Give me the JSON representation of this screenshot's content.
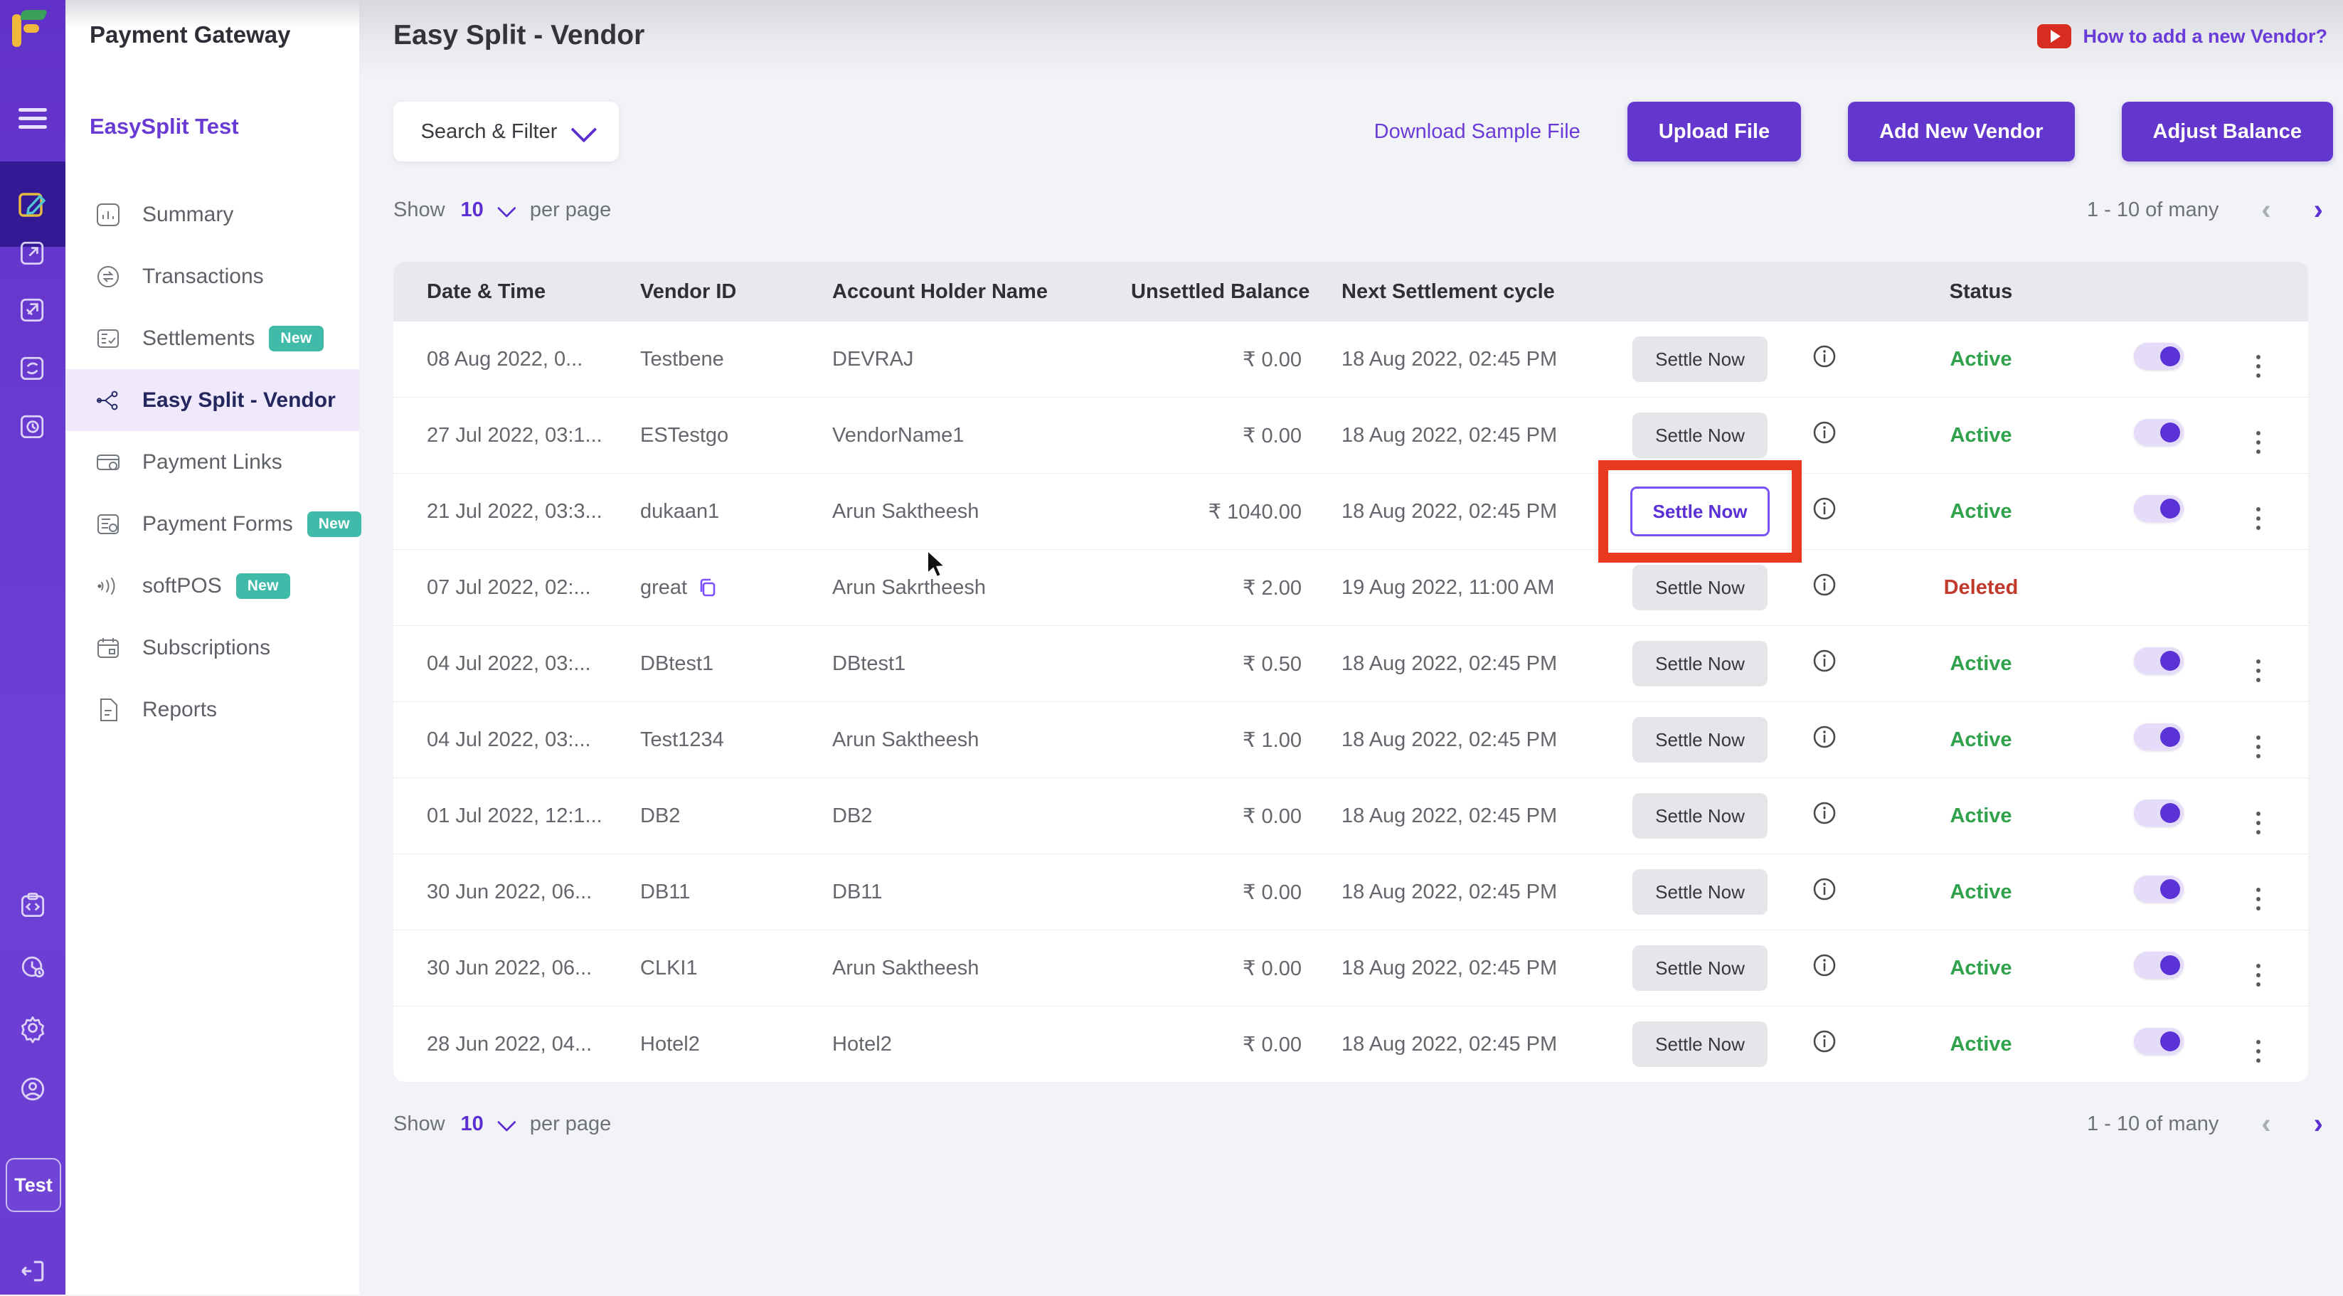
{
  "sidebar": {
    "product_title": "Payment Gateway",
    "account_name": "EasySplit Test",
    "test_mode_label": "Test",
    "menu": [
      {
        "label": "Summary",
        "icon": "summary",
        "badge": "",
        "active": false
      },
      {
        "label": "Transactions",
        "icon": "transactions",
        "badge": "",
        "active": false
      },
      {
        "label": "Settlements",
        "icon": "settlements",
        "badge": "New",
        "active": false
      },
      {
        "label": "Easy Split - Vendor",
        "icon": "easysplit",
        "badge": "",
        "active": true
      },
      {
        "label": "Payment Links",
        "icon": "paymentlinks",
        "badge": "",
        "active": false
      },
      {
        "label": "Payment Forms",
        "icon": "paymentforms",
        "badge": "New",
        "active": false
      },
      {
        "label": "softPOS",
        "icon": "softpos",
        "badge": "New",
        "active": false
      },
      {
        "label": "Subscriptions",
        "icon": "subscriptions",
        "badge": "",
        "active": false
      },
      {
        "label": "Reports",
        "icon": "reports",
        "badge": "",
        "active": false
      }
    ]
  },
  "header": {
    "page_title": "Easy Split - Vendor",
    "help_link": "How to add a new Vendor?"
  },
  "toolbar": {
    "search_filter_label": "Search & Filter",
    "download_sample_label": "Download Sample File",
    "upload_label": "Upload File",
    "add_vendor_label": "Add New Vendor",
    "adjust_balance_label": "Adjust Balance"
  },
  "pagination": {
    "show_label": "Show",
    "page_size": "10",
    "per_page_label": "per page",
    "range_label": "1 - 10 of many",
    "prev_icon": "‹",
    "next_icon": "›"
  },
  "table": {
    "columns": [
      "Date & Time",
      "Vendor ID",
      "Account Holder Name",
      "Unsettled Balance",
      "Next Settlement cycle",
      "Status"
    ],
    "settle_button_label": "Settle Now",
    "rows": [
      {
        "date": "08 Aug 2022, 0...",
        "vendor_id": "Testbene",
        "copy": false,
        "holder": "DEVRAJ",
        "balance": "₹ 0.00",
        "cycle": "18 Aug 2022, 02:45 PM",
        "status": "Active",
        "toggle": true,
        "highlight": false
      },
      {
        "date": "27 Jul 2022, 03:1...",
        "vendor_id": "ESTestgo",
        "copy": false,
        "holder": "VendorName1",
        "balance": "₹ 0.00",
        "cycle": "18 Aug 2022, 02:45 PM",
        "status": "Active",
        "toggle": true,
        "highlight": false
      },
      {
        "date": "21 Jul 2022, 03:3...",
        "vendor_id": "dukaan1",
        "copy": false,
        "holder": "Arun Saktheesh",
        "balance": "₹ 1040.00",
        "cycle": "18 Aug 2022, 02:45 PM",
        "status": "Active",
        "toggle": true,
        "highlight": true
      },
      {
        "date": "07 Jul 2022, 02:...",
        "vendor_id": "great",
        "copy": true,
        "holder": "Arun Sakrtheesh",
        "balance": "₹ 2.00",
        "cycle": "19 Aug 2022, 11:00 AM",
        "status": "Deleted",
        "toggle": false,
        "highlight": false
      },
      {
        "date": "04 Jul 2022, 03:...",
        "vendor_id": "DBtest1",
        "copy": false,
        "holder": "DBtest1",
        "balance": "₹ 0.50",
        "cycle": "18 Aug 2022, 02:45 PM",
        "status": "Active",
        "toggle": true,
        "highlight": false
      },
      {
        "date": "04 Jul 2022, 03:...",
        "vendor_id": "Test1234",
        "copy": false,
        "holder": "Arun Saktheesh",
        "balance": "₹ 1.00",
        "cycle": "18 Aug 2022, 02:45 PM",
        "status": "Active",
        "toggle": true,
        "highlight": false
      },
      {
        "date": "01 Jul 2022, 12:1...",
        "vendor_id": "DB2",
        "copy": false,
        "holder": "DB2",
        "balance": "₹ 0.00",
        "cycle": "18 Aug 2022, 02:45 PM",
        "status": "Active",
        "toggle": true,
        "highlight": false
      },
      {
        "date": "30 Jun 2022, 06...",
        "vendor_id": "DB11",
        "copy": false,
        "holder": "DB11",
        "balance": "₹ 0.00",
        "cycle": "18 Aug 2022, 02:45 PM",
        "status": "Active",
        "toggle": true,
        "highlight": false
      },
      {
        "date": "30 Jun 2022, 06...",
        "vendor_id": "CLKI1",
        "copy": false,
        "holder": "Arun Saktheesh",
        "balance": "₹ 0.00",
        "cycle": "18 Aug 2022, 02:45 PM",
        "status": "Active",
        "toggle": true,
        "highlight": false
      },
      {
        "date": "28 Jun 2022, 04...",
        "vendor_id": "Hotel2",
        "copy": false,
        "holder": "Hotel2",
        "balance": "₹ 0.00",
        "cycle": "18 Aug 2022, 02:45 PM",
        "status": "Active",
        "toggle": true,
        "highlight": false
      }
    ]
  },
  "colors": {
    "accent_purple": "#6337ce",
    "rail_purple": "#6a3cd2",
    "active_menu_bg": "#efe9fb",
    "badge_teal": "#41bba9",
    "status_active_green": "#2fa24b",
    "status_deleted_red": "#c0392b",
    "highlight_red": "#e8381d",
    "table_header_bg": "#e8e9ee",
    "page_bg": "#f2f3f7"
  }
}
